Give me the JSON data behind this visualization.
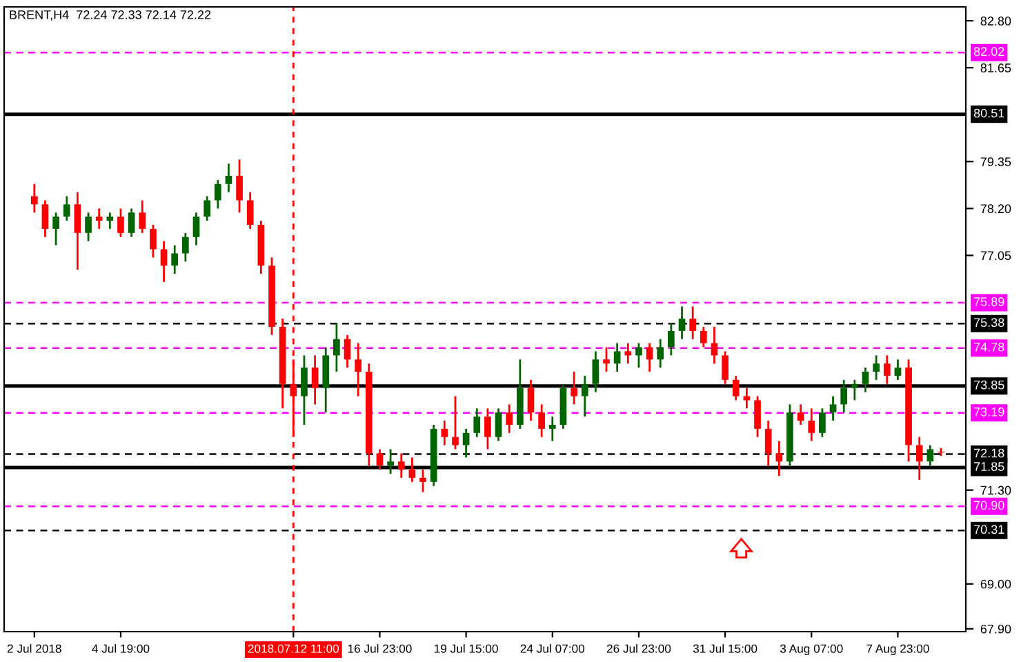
{
  "chart_data": {
    "type": "candlestick",
    "title": "BRENT,H4  72.24 72.33 72.14 72.22",
    "categories": [
      "2 Jul 2018",
      null,
      null,
      null,
      null,
      null,
      null,
      null,
      "4 Jul 19:00",
      null,
      null,
      null,
      null,
      null,
      null,
      null,
      null,
      null,
      null,
      null,
      null,
      null,
      null,
      null,
      "2018.07.12 11:00",
      null,
      null,
      null,
      null,
      null,
      null,
      null,
      "16 Jul 23:00",
      null,
      null,
      null,
      null,
      null,
      null,
      null,
      "19 Jul 15:00",
      null,
      null,
      null,
      null,
      null,
      null,
      null,
      "24 Jul 07:00",
      null,
      null,
      null,
      null,
      null,
      null,
      null,
      "26 Jul 23:00",
      null,
      null,
      null,
      null,
      null,
      null,
      null,
      "31 Jul 15:00",
      null,
      null,
      null,
      null,
      null,
      null,
      null,
      "3 Aug 07:00",
      null,
      null,
      null,
      null,
      null,
      null,
      null,
      "7 Aug 23:00",
      null,
      null,
      null,
      null
    ],
    "ohlc": [
      [
        78.5,
        78.8,
        78.1,
        78.3
      ],
      [
        78.3,
        78.4,
        77.5,
        77.7
      ],
      [
        77.7,
        78.1,
        77.3,
        78.0
      ],
      [
        78.0,
        78.5,
        77.9,
        78.3
      ],
      [
        78.3,
        78.6,
        76.7,
        77.6
      ],
      [
        77.6,
        78.1,
        77.4,
        78.0
      ],
      [
        78.0,
        78.2,
        77.7,
        77.9
      ],
      [
        77.9,
        78.1,
        77.7,
        78.0
      ],
      [
        78.0,
        78.2,
        77.5,
        77.6
      ],
      [
        77.6,
        78.2,
        77.5,
        78.1
      ],
      [
        78.1,
        78.4,
        77.6,
        77.7
      ],
      [
        77.7,
        77.8,
        77.0,
        77.2
      ],
      [
        77.2,
        77.4,
        76.4,
        76.8
      ],
      [
        76.8,
        77.3,
        76.6,
        77.1
      ],
      [
        77.1,
        77.6,
        76.9,
        77.5
      ],
      [
        77.5,
        78.1,
        77.3,
        78.0
      ],
      [
        78.0,
        78.5,
        77.9,
        78.4
      ],
      [
        78.4,
        78.9,
        78.2,
        78.8
      ],
      [
        78.8,
        79.3,
        78.6,
        79.0
      ],
      [
        79.0,
        79.4,
        78.1,
        78.4
      ],
      [
        78.4,
        78.6,
        77.7,
        77.8
      ],
      [
        77.8,
        77.9,
        76.6,
        76.8
      ],
      [
        76.8,
        77.0,
        75.1,
        75.3
      ],
      [
        75.3,
        75.5,
        73.3,
        73.9
      ],
      [
        73.9,
        74.5,
        72.6,
        73.6
      ],
      [
        73.6,
        74.6,
        72.9,
        74.3
      ],
      [
        74.3,
        74.6,
        73.4,
        73.8
      ],
      [
        73.8,
        74.8,
        73.2,
        74.6
      ],
      [
        74.6,
        75.4,
        74.2,
        75.0
      ],
      [
        75.0,
        75.1,
        74.3,
        74.5
      ],
      [
        74.5,
        74.9,
        73.6,
        74.2
      ],
      [
        74.2,
        74.4,
        71.9,
        72.2
      ],
      [
        72.2,
        72.3,
        71.8,
        71.9
      ],
      [
        71.9,
        72.3,
        71.7,
        72.0
      ],
      [
        72.0,
        72.2,
        71.6,
        71.8
      ],
      [
        71.8,
        72.1,
        71.5,
        71.6
      ],
      [
        71.6,
        71.8,
        71.25,
        71.5
      ],
      [
        71.5,
        72.9,
        71.4,
        72.8
      ],
      [
        72.8,
        73.0,
        72.4,
        72.6
      ],
      [
        72.6,
        73.6,
        72.3,
        72.4
      ],
      [
        72.4,
        72.8,
        72.1,
        72.7
      ],
      [
        72.7,
        73.3,
        72.6,
        73.1
      ],
      [
        73.1,
        73.3,
        72.3,
        72.6
      ],
      [
        72.6,
        73.3,
        72.5,
        73.2
      ],
      [
        73.2,
        73.4,
        72.7,
        72.9
      ],
      [
        72.9,
        74.5,
        72.8,
        73.8
      ],
      [
        73.8,
        74.0,
        73.0,
        73.2
      ],
      [
        73.2,
        73.4,
        72.6,
        72.8
      ],
      [
        72.8,
        73.1,
        72.5,
        72.9
      ],
      [
        72.9,
        73.9,
        72.8,
        73.8
      ],
      [
        73.8,
        74.2,
        73.4,
        73.6
      ],
      [
        73.6,
        74.1,
        73.1,
        73.9
      ],
      [
        73.9,
        74.7,
        73.7,
        74.5
      ],
      [
        74.5,
        74.8,
        74.2,
        74.4
      ],
      [
        74.4,
        74.9,
        74.2,
        74.7
      ],
      [
        74.7,
        74.9,
        74.4,
        74.6
      ],
      [
        74.6,
        74.9,
        74.3,
        74.8
      ],
      [
        74.8,
        74.9,
        74.2,
        74.5
      ],
      [
        74.5,
        75.0,
        74.3,
        74.8
      ],
      [
        74.8,
        75.4,
        74.6,
        75.2
      ],
      [
        75.2,
        75.8,
        75.0,
        75.5
      ],
      [
        75.5,
        75.8,
        75.0,
        75.2
      ],
      [
        75.2,
        75.3,
        74.8,
        74.9
      ],
      [
        74.9,
        75.3,
        74.4,
        74.6
      ],
      [
        74.6,
        74.7,
        73.9,
        74.0
      ],
      [
        74.0,
        74.1,
        73.5,
        73.6
      ],
      [
        73.6,
        73.8,
        73.3,
        73.5
      ],
      [
        73.5,
        73.6,
        72.6,
        72.8
      ],
      [
        72.8,
        73.0,
        71.9,
        72.2
      ],
      [
        72.2,
        72.5,
        71.65,
        72.0
      ],
      [
        72.0,
        73.4,
        71.9,
        73.2
      ],
      [
        73.2,
        73.4,
        72.9,
        73.0
      ],
      [
        73.0,
        73.3,
        72.5,
        72.7
      ],
      [
        72.7,
        73.3,
        72.6,
        73.2
      ],
      [
        73.2,
        73.6,
        73.0,
        73.4
      ],
      [
        73.4,
        74.0,
        73.2,
        73.8
      ],
      [
        73.8,
        74.0,
        73.5,
        73.9
      ],
      [
        73.9,
        74.3,
        73.7,
        74.2
      ],
      [
        74.2,
        74.6,
        74.0,
        74.4
      ],
      [
        74.4,
        74.6,
        73.9,
        74.1
      ],
      [
        74.1,
        74.5,
        74.0,
        74.3
      ],
      [
        74.3,
        74.5,
        72.0,
        72.4
      ],
      [
        72.4,
        72.6,
        71.55,
        72.0
      ],
      [
        72.0,
        72.4,
        71.9,
        72.3
      ],
      [
        72.24,
        72.33,
        72.14,
        72.22
      ]
    ],
    "ylim": [
      67.83,
      83.14
    ],
    "yticks": [
      {
        "value": 82.8,
        "label": "82.80"
      },
      81.65,
      79.35,
      {
        "value": 78.2,
        "label": "78.20"
      },
      77.05,
      {
        "value": 71.3,
        "label": "71.30"
      },
      {
        "value": 69.0,
        "label": "69.00"
      },
      {
        "value": 67.9,
        "label": "67.90"
      }
    ],
    "ref_lines": [
      {
        "axis": "y",
        "value": 82.02,
        "label": "82.02",
        "color": "#ff00ff",
        "line_style": "dashed"
      },
      {
        "axis": "y",
        "value": 80.51,
        "label": "80.51",
        "color": "#000000",
        "line_style": "solid"
      },
      {
        "axis": "y",
        "value": 75.89,
        "label": "75.89",
        "color": "#ff00ff",
        "line_style": "dashed"
      },
      {
        "axis": "y",
        "value": 75.38,
        "label": "75.38",
        "color": "#000000",
        "line_style": "dashed"
      },
      {
        "axis": "y",
        "value": 74.78,
        "label": "74.78",
        "color": "#ff00ff",
        "line_style": "dashed"
      },
      {
        "axis": "y",
        "value": 73.85,
        "label": "73.85",
        "color": "#000000",
        "line_style": "solid"
      },
      {
        "axis": "y",
        "value": 73.19,
        "label": "73.19",
        "color": "#ff00ff",
        "line_style": "dashed"
      },
      {
        "axis": "y",
        "value": 72.18,
        "label": "72.18",
        "color": "#000000",
        "line_style": "dashed"
      },
      {
        "axis": "y",
        "value": 71.85,
        "label": "71.85",
        "color": "#000000",
        "line_style": "solid"
      },
      {
        "axis": "y",
        "value": 70.9,
        "label": "70.90",
        "color": "#ff00ff",
        "line_style": "dashed"
      },
      {
        "axis": "y",
        "value": 70.31,
        "label": "70.31",
        "color": "#000000",
        "line_style": "dashed"
      },
      {
        "axis": "x",
        "value": "2018.07.12 11:00",
        "color": "#ff0000",
        "line_style": "dotted"
      }
    ],
    "grid": false
  }
}
